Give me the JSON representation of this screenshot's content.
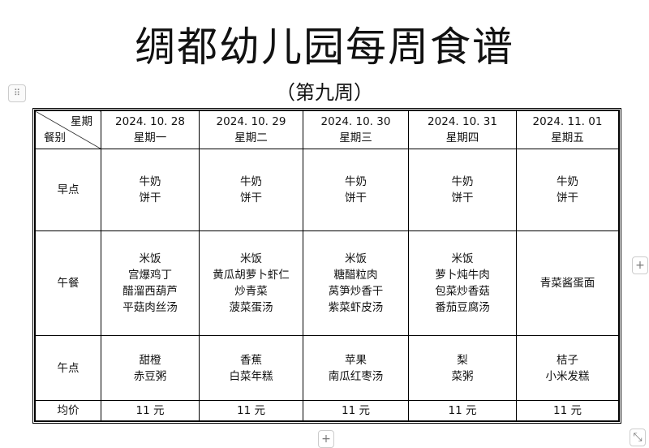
{
  "title": "绸都幼儿园每周食谱",
  "subtitle": "（第九周）",
  "table": {
    "corner_top": "星期",
    "corner_bottom": "餐别",
    "days": [
      {
        "date": "2024. 10. 28",
        "weekday": "星期一"
      },
      {
        "date": "2024. 10. 29",
        "weekday": "星期二"
      },
      {
        "date": "2024. 10. 30",
        "weekday": "星期三"
      },
      {
        "date": "2024. 10. 31",
        "weekday": "星期四"
      },
      {
        "date": "2024. 11. 01",
        "weekday": "星期五"
      }
    ],
    "rows": [
      {
        "label": "早点",
        "cells": [
          [
            "牛奶",
            "饼干"
          ],
          [
            "牛奶",
            "饼干"
          ],
          [
            "牛奶",
            "饼干"
          ],
          [
            "牛奶",
            "饼干"
          ],
          [
            "牛奶",
            "饼干"
          ]
        ]
      },
      {
        "label": "午餐",
        "cells": [
          [
            "米饭",
            "宫爆鸡丁",
            "醋溜西葫芦",
            "平菇肉丝汤"
          ],
          [
            "米饭",
            "黄瓜胡萝卜虾仁",
            "炒青菜",
            "菠菜蛋汤"
          ],
          [
            "米饭",
            "糖醋粒肉",
            "莴笋炒香干",
            "紫菜虾皮汤"
          ],
          [
            "米饭",
            "萝卜炖牛肉",
            "包菜炒香菇",
            "番茄豆腐汤"
          ],
          [
            "青菜酱蛋面"
          ]
        ]
      },
      {
        "label": "午点",
        "cells": [
          [
            "甜橙",
            "赤豆粥"
          ],
          [
            "香蕉",
            "白菜年糕"
          ],
          [
            "苹果",
            "南瓜红枣汤"
          ],
          [
            "梨",
            "菜粥"
          ],
          [
            "桔子",
            "小米发糕"
          ]
        ]
      }
    ],
    "price_label": "均价",
    "prices": [
      "11 元",
      "11 元",
      "11 元",
      "11 元",
      "11 元"
    ]
  },
  "controls": {
    "drag_handle": "⠿",
    "add_column": "+",
    "add_row": "+",
    "resize": "⤡"
  }
}
